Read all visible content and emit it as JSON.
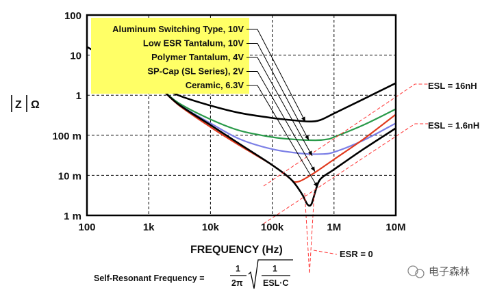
{
  "chart_data": {
    "type": "line",
    "xscale": "log",
    "yscale": "log",
    "xlim": [
      100,
      10000000
    ],
    "ylim": [
      0.001,
      100
    ],
    "x_ticks": [
      {
        "value": 100,
        "label": "100"
      },
      {
        "value": 1000,
        "label": "1k"
      },
      {
        "value": 10000,
        "label": "10k"
      },
      {
        "value": 100000,
        "label": "100k"
      },
      {
        "value": 1000000,
        "label": "1M"
      },
      {
        "value": 10000000,
        "label": "10M"
      }
    ],
    "y_ticks": [
      {
        "value": 100,
        "label": "100"
      },
      {
        "value": 10,
        "label": "10"
      },
      {
        "value": 1,
        "label": "1"
      },
      {
        "value": 0.1,
        "label": "100 m"
      },
      {
        "value": 0.01,
        "label": "10 m"
      },
      {
        "value": 0.001,
        "label": "1 m"
      }
    ],
    "xlabel": "FREQUENCY (Hz)",
    "ylabel": "|Z| Ω",
    "ylabel_parts": [
      "Z",
      "Ω"
    ],
    "grid": true,
    "legend_position": "top-left",
    "legend_bg": "#ffff66",
    "series": [
      {
        "name": "Aluminum Switching Type, 10V",
        "color": "#000000",
        "x": [
          100,
          1000,
          3000,
          10000,
          30000,
          100000,
          200000,
          400000,
          600000,
          1000000,
          3000000,
          10000000
        ],
        "y": [
          16,
          2.3,
          1.0,
          0.55,
          0.36,
          0.27,
          0.24,
          0.22,
          0.24,
          0.35,
          0.8,
          2.0
        ]
      },
      {
        "name": "Low ESR Tantalum, 10V",
        "color": "#2a9a4a",
        "x": [
          1500,
          3000,
          10000,
          30000,
          100000,
          200000,
          500000,
          800000,
          1000000,
          3000000,
          10000000
        ],
        "y": [
          1.6,
          0.65,
          0.25,
          0.13,
          0.09,
          0.08,
          0.075,
          0.08,
          0.09,
          0.18,
          0.45
        ]
      },
      {
        "name": "Polymer Tantalum, 4V",
        "color": "#7b7fe6",
        "x": [
          1500,
          3000,
          10000,
          30000,
          100000,
          300000,
          600000,
          1000000,
          3000000,
          10000000
        ],
        "y": [
          1.6,
          0.6,
          0.2,
          0.08,
          0.045,
          0.035,
          0.034,
          0.038,
          0.075,
          0.2
        ]
      },
      {
        "name": "SP-Cap (SL Series), 2V",
        "color": "#e03a1e",
        "x": [
          1500,
          3000,
          10000,
          30000,
          100000,
          200000,
          230000,
          300000,
          500000,
          1000000,
          3000000,
          10000000
        ],
        "y": [
          1.6,
          0.58,
          0.16,
          0.055,
          0.018,
          0.008,
          0.0068,
          0.0075,
          0.012,
          0.025,
          0.08,
          0.33
        ]
      },
      {
        "name": "Ceramic, 6.3V",
        "color": "#000000",
        "x": [
          1500,
          3000,
          10000,
          30000,
          100000,
          200000,
          300000,
          370000,
          430000,
          500000,
          600000,
          1000000,
          3000000,
          10000000
        ],
        "y": [
          1.6,
          0.6,
          0.18,
          0.06,
          0.018,
          0.008,
          0.0035,
          0.0019,
          0.0019,
          0.004,
          0.008,
          0.014,
          0.045,
          0.15
        ]
      }
    ],
    "annotations": [
      {
        "text": "ESL = 16nH",
        "color": "#000000",
        "line_color": "#ff3333"
      },
      {
        "text": "ESL = 1.6nH",
        "color": "#000000",
        "line_color": "#ff3333"
      },
      {
        "text": "ESR = 0",
        "color": "#000000",
        "line_color": "#ff3333"
      }
    ],
    "formula": {
      "label": "Self-Resonant Frequency =",
      "numerator": "1",
      "denominator": "2π",
      "root_numerator": "1",
      "root_denominator": "ESL·C"
    }
  },
  "watermark": "电子森林"
}
